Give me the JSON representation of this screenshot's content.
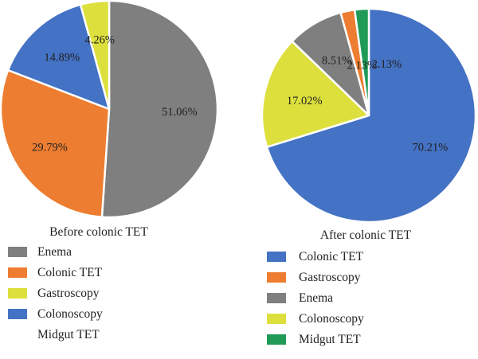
{
  "chart_data": [
    {
      "type": "pie",
      "title": "Before colonic TET",
      "slices": [
        {
          "label": "Enema",
          "value": 51.06,
          "display": "51.06%",
          "color": "#7f7f7f"
        },
        {
          "label": "Colonic TET",
          "value": 29.79,
          "display": "29.79%",
          "color": "#ed7d31"
        },
        {
          "label": "Colonoscopy",
          "value": 14.89,
          "display": "14.89%",
          "color": "#4472c4"
        },
        {
          "label": "Gastroscopy",
          "value": 4.26,
          "display": "4.26%",
          "color": "#dde03c"
        }
      ],
      "legend": [
        {
          "label": "Enema",
          "color": "#7f7f7f"
        },
        {
          "label": "Colonic TET",
          "color": "#ed7d31"
        },
        {
          "label": "Gastroscopy",
          "color": "#dde03c"
        },
        {
          "label": "Colonoscopy",
          "color": "#4472c4"
        },
        {
          "label": "Midgut TET",
          "color": ""
        }
      ]
    },
    {
      "type": "pie",
      "title": "After colonic TET",
      "slices": [
        {
          "label": "Colonic TET",
          "value": 70.21,
          "display": "70.21%",
          "color": "#4472c4"
        },
        {
          "label": "Colonoscopy",
          "value": 17.02,
          "display": "17.02%",
          "color": "#dde03c"
        },
        {
          "label": "Enema",
          "value": 8.51,
          "display": "8.51%",
          "color": "#7f7f7f"
        },
        {
          "label": "Gastroscopy",
          "value": 2.13,
          "display": "2.13%",
          "color": "#ed7d31"
        },
        {
          "label": "Midgut TET",
          "value": 2.13,
          "display": "2.13%",
          "color": "#1f9a57"
        }
      ],
      "legend": [
        {
          "label": "Colonic TET",
          "color": "#4472c4"
        },
        {
          "label": "Gastroscopy",
          "color": "#ed7d31"
        },
        {
          "label": "Enema",
          "color": "#7f7f7f"
        },
        {
          "label": "Colonoscopy",
          "color": "#dde03c"
        },
        {
          "label": "Midgut TET",
          "color": "#1f9a57"
        }
      ]
    }
  ]
}
